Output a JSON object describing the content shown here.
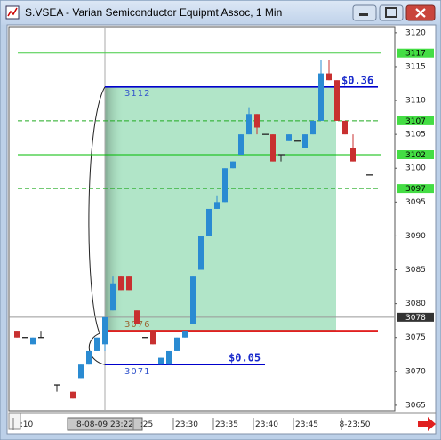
{
  "chart_data": {
    "type": "candlestick",
    "title": "S.VSEA - Varian Semiconductor Equipmt Assoc, 1 Min",
    "categories": [
      null,
      ":10",
      null,
      null,
      null,
      null,
      null,
      null,
      null,
      null,
      null,
      "8-08-09 23:22",
      null,
      null,
      null,
      null,
      ":25",
      null,
      null,
      null,
      null,
      "23:30",
      null,
      null,
      null,
      null,
      "23:35",
      null,
      null,
      null,
      null,
      "23:40",
      null,
      null,
      null,
      null,
      "23:45",
      null,
      null,
      null,
      null,
      null,
      "8-23:50",
      null,
      null
    ],
    "open": [
      3076,
      3075,
      3074,
      3075,
      null,
      3068,
      null,
      3067,
      3069,
      3071,
      3073,
      3074,
      3079,
      3084,
      3084,
      3079,
      3075,
      3076,
      3071,
      3071,
      3073,
      3075,
      3077,
      3085,
      3090,
      3094,
      3095,
      3100,
      3102,
      3105,
      3108,
      3105,
      3105,
      3102,
      3104,
      3104,
      3103,
      3105,
      3107,
      3114,
      3113,
      3107,
      3103,
      null,
      3099
    ],
    "high": [
      3076,
      3075,
      3075,
      3076,
      null,
      3068,
      null,
      3067,
      3071,
      3073,
      3075,
      3078,
      3084,
      3084,
      3084,
      3079,
      3075,
      3076,
      3072,
      3073,
      3075,
      3076,
      3084,
      3090,
      3094,
      3096,
      3100,
      3101,
      3105,
      3109,
      3108,
      3105,
      3105,
      3102,
      3105,
      3104,
      3105,
      3107,
      3116,
      3116,
      3113,
      3107,
      3105,
      null,
      3099
    ],
    "low": [
      3075,
      3075,
      3074,
      3075,
      null,
      3067,
      null,
      3066,
      3069,
      3071,
      3073,
      3073,
      3079,
      3082,
      3082,
      3077,
      3075,
      3074,
      3071,
      3071,
      3073,
      3075,
      3077,
      3085,
      3090,
      3094,
      3095,
      3100,
      3102,
      3105,
      3105,
      3105,
      3101,
      3101,
      3104,
      3104,
      3103,
      3105,
      3107,
      3113,
      3107,
      3105,
      3101,
      null,
      3099
    ],
    "close": [
      3075,
      3075,
      3075,
      3075,
      null,
      3068,
      null,
      3066,
      3071,
      3073,
      3075,
      3078,
      3083,
      3082,
      3082,
      3077,
      3075,
      3074,
      3072,
      3073,
      3075,
      3076,
      3084,
      3090,
      3094,
      3095,
      3100,
      3101,
      3105,
      3108,
      3106,
      3105,
      3101,
      3102,
      3105,
      3104,
      3105,
      3107,
      3114,
      3113,
      3107,
      3105,
      3101,
      null,
      3099
    ],
    "up_color": "#2a8bd2",
    "down_color": "#c83030",
    "ylim": [
      3064.2,
      3120.9
    ],
    "yticks": [
      3120,
      3115,
      3110,
      3105,
      3100,
      3095,
      3090,
      3085,
      3080,
      3075,
      3070,
      3065
    ],
    "zone": {
      "from": 3076,
      "to": 3112,
      "color": "#a8e2c2"
    },
    "levels": [
      {
        "value": 3117,
        "color": "#44cc44",
        "style": "solid",
        "tag_color": "#44dd44"
      },
      {
        "value": 3112,
        "color": "#0000cc",
        "style": "solid",
        "label_color": "#3355cc",
        "note": "$0.36"
      },
      {
        "value": 3107,
        "color": "#22aa22",
        "style": "dashed",
        "tag_color": "#44dd44"
      },
      {
        "value": 3102,
        "color": "#00bb00",
        "style": "solid",
        "tag_color": "#44dd44"
      },
      {
        "value": 3097,
        "color": "#22aa22",
        "style": "dashed",
        "tag_color": "#44dd44"
      },
      {
        "value": 3078,
        "color": "#999999",
        "style": "solid",
        "tag_color": "#333333"
      },
      {
        "value": 3076,
        "color": "#dd0000",
        "style": "solid",
        "label_color": "#996633"
      },
      {
        "value": 3071,
        "color": "#0000cc",
        "style": "solid",
        "label_color": "#3355cc",
        "note": "$0.05"
      }
    ]
  }
}
